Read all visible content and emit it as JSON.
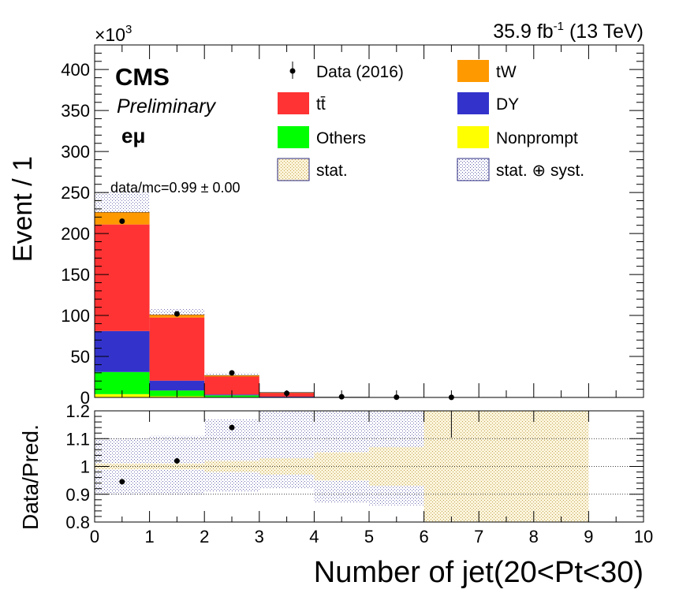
{
  "chart_data": [
    {
      "type": "bar",
      "panel": "main",
      "stacked": true,
      "ylabel": "Event / 1",
      "y_multiplier": "×10",
      "y_multiplier_exp": "3",
      "lumi_main": "35.9 fb",
      "lumi_sup": "-1",
      "lumi_energy": " (13 TeV)",
      "cms_label": "CMS",
      "prelim_label": "Preliminary",
      "channel_label": "eμ",
      "ratio_text": "data/mc=0.99 ± 0.00",
      "xlim": [
        0,
        10
      ],
      "ylim": [
        0,
        430
      ],
      "yticks": [
        0,
        50,
        100,
        150,
        200,
        250,
        300,
        350,
        400
      ],
      "bins": [
        [
          0,
          1
        ],
        [
          1,
          2
        ],
        [
          2,
          3
        ],
        [
          3,
          4
        ],
        [
          4,
          5
        ],
        [
          5,
          6
        ],
        [
          6,
          7
        ],
        [
          7,
          8
        ],
        [
          8,
          9
        ],
        [
          9,
          10
        ]
      ],
      "series": [
        {
          "name": "Nonprompt",
          "color": "#ffff00",
          "values": [
            4,
            1.5,
            0.5,
            0.2,
            0,
            0,
            0,
            0,
            0,
            0
          ]
        },
        {
          "name": "Others",
          "color": "#00ff00",
          "values": [
            27,
            7,
            2,
            0.5,
            0,
            0,
            0,
            0,
            0,
            0
          ]
        },
        {
          "name": "DY",
          "color": "#3333cc",
          "values": [
            50,
            12,
            1,
            0.3,
            0,
            0,
            0,
            0,
            0,
            0
          ]
        },
        {
          "name": "tt̄",
          "color": "#ff3333",
          "values": [
            130,
            77,
            22,
            4.5,
            0.5,
            0.2,
            0.1,
            0,
            0,
            0
          ]
        },
        {
          "name": "tW",
          "color": "#ff9900",
          "values": [
            15,
            3.5,
            1.5,
            0.5,
            0,
            0,
            0,
            0,
            0,
            0
          ]
        }
      ],
      "data_points": {
        "name": "Data (2016)",
        "x": [
          0.5,
          1.5,
          2.5,
          3.5,
          4.5,
          5.5,
          6.5
        ],
        "y": [
          215,
          102,
          30,
          5,
          0.8,
          0.3,
          0.1
        ]
      },
      "syst_band_top": [
        250,
        108,
        30,
        6,
        0.8,
        0.3,
        0.1,
        0,
        0,
        0
      ],
      "legend": [
        {
          "label": "Data (2016)",
          "kind": "marker"
        },
        {
          "label": "tW",
          "kind": "fill",
          "color": "#ff9900"
        },
        {
          "label": "tt̄",
          "kind": "fill",
          "color": "#ff3333"
        },
        {
          "label": "DY",
          "kind": "fill",
          "color": "#3333cc"
        },
        {
          "label": "Others",
          "kind": "fill",
          "color": "#00ff00"
        },
        {
          "label": "Nonprompt",
          "kind": "fill",
          "color": "#ffff00"
        },
        {
          "label": "stat.",
          "kind": "hatch",
          "color": "#e8d9a0"
        },
        {
          "label": "stat. ⊕ syst.",
          "kind": "hatch",
          "color": "#a9a9d6"
        }
      ]
    },
    {
      "type": "scatter",
      "panel": "ratio",
      "xlabel": "Number of jet(20<Pt<30)",
      "ylabel": "Data/Pred.",
      "xlim": [
        0,
        10
      ],
      "ylim": [
        0.8,
        1.2
      ],
      "xticks": [
        0,
        1,
        2,
        3,
        4,
        5,
        6,
        7,
        8,
        9,
        10
      ],
      "yticks": [
        0.8,
        0.9,
        1,
        1.1,
        1.2
      ],
      "ytick_labels": [
        "0.8",
        "0.9",
        "1",
        "1.1",
        "1.2"
      ],
      "points": {
        "x": [
          0.5,
          1.5,
          2.5
        ],
        "y": [
          0.945,
          1.02,
          1.14
        ]
      },
      "syst_band": [
        [
          0.9,
          1.1
        ],
        [
          0.9,
          1.11
        ],
        [
          0.91,
          1.17
        ],
        [
          0.92,
          1.2
        ],
        [
          0.87,
          1.2
        ],
        [
          0.86,
          1.2
        ],
        [
          0.8,
          1.2
        ],
        [
          0.8,
          1.2
        ],
        [
          0.8,
          1.2
        ],
        [
          1,
          1
        ]
      ],
      "stat_band": [
        [
          0.99,
          1.01
        ],
        [
          0.99,
          1.01
        ],
        [
          0.98,
          1.02
        ],
        [
          0.97,
          1.03
        ],
        [
          0.95,
          1.05
        ],
        [
          0.93,
          1.07
        ],
        [
          0.8,
          1.2
        ],
        [
          0.8,
          1.2
        ],
        [
          0.8,
          1.2
        ],
        [
          1,
          1
        ]
      ]
    }
  ]
}
